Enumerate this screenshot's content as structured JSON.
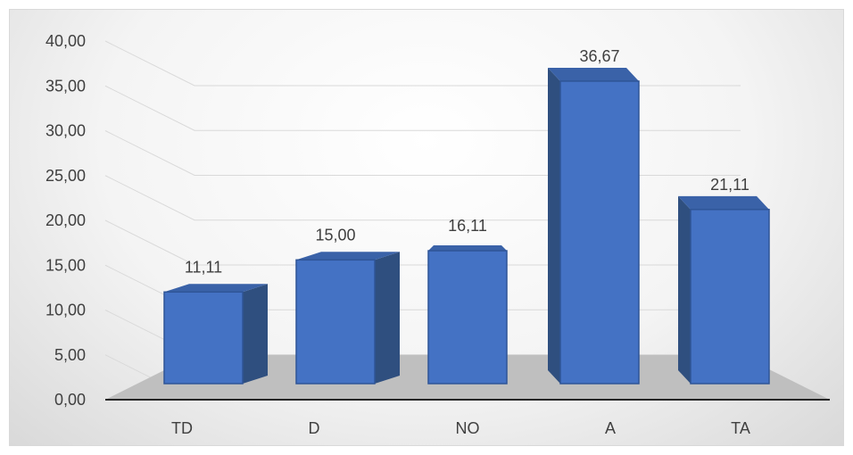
{
  "chart_data": {
    "type": "bar",
    "categories": [
      "TD",
      "D",
      "NO",
      "A",
      "TA"
    ],
    "values": [
      11.11,
      15.0,
      16.11,
      36.67,
      21.11
    ],
    "value_labels": [
      "11,11",
      "15,00",
      "16,11",
      "36,67",
      "21,11"
    ],
    "y_ticks": [
      "0,00",
      "5,00",
      "10,00",
      "15,00",
      "20,00",
      "25,00",
      "30,00",
      "35,00",
      "40,00"
    ],
    "ylim": [
      0,
      40
    ],
    "grid": true,
    "style": "3d-column",
    "bar_color": "#4472c4"
  }
}
